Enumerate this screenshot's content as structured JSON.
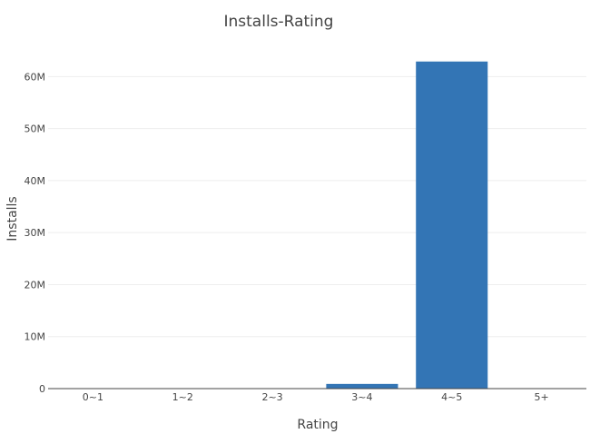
{
  "chart_data": {
    "type": "bar",
    "title": "Installs-Rating",
    "xlabel": "Rating",
    "ylabel": "Installs",
    "categories": [
      "0~1",
      "1~2",
      "2~3",
      "3~4",
      "4~5",
      "5+"
    ],
    "values": [
      0,
      0,
      0,
      900000,
      62900000,
      0
    ],
    "ylim": [
      0,
      66000000
    ],
    "yticks": [
      0,
      10000000,
      20000000,
      30000000,
      40000000,
      50000000,
      60000000
    ],
    "ytick_labels": [
      "0",
      "10M",
      "20M",
      "30M",
      "40M",
      "50M",
      "60M"
    ],
    "bar_color": "#3375b5",
    "grid": true,
    "legend": "none"
  }
}
